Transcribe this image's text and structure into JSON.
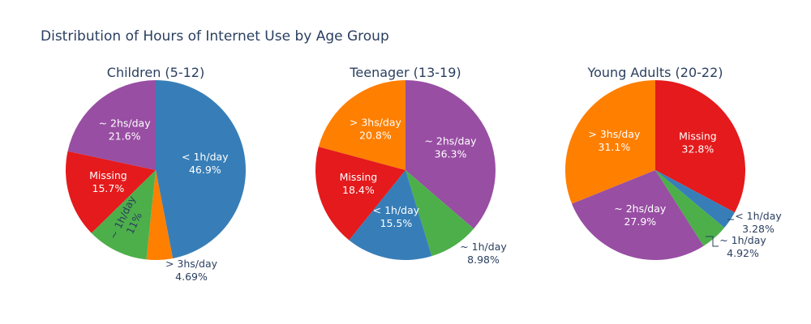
{
  "chart_data": {
    "type": "pie",
    "title": "Distribution of Hours of Internet Use by Age Group",
    "colors": {
      "< 1h/day": "#377eb8",
      "> 3hs/day": "#ff7f00",
      "~ 1h/day": "#4daf4a",
      "Missing": "#e41a1c",
      "~ 2hs/day": "#984ea3"
    },
    "pies": [
      {
        "title": "Children (5-12)",
        "slices": [
          {
            "label": "< 1h/day",
            "value": 46.9,
            "text": "46.9%"
          },
          {
            "label": "> 3hs/day",
            "value": 4.69,
            "text": "4.69%"
          },
          {
            "label": "~ 1h/day",
            "value": 11,
            "text": "11%"
          },
          {
            "label": "Missing",
            "value": 15.7,
            "text": "15.7%"
          },
          {
            "label": "~ 2hs/day",
            "value": 21.6,
            "text": "21.6%"
          }
        ]
      },
      {
        "title": "Teenager (13-19)",
        "slices": [
          {
            "label": "~ 2hs/day",
            "value": 36.3,
            "text": "36.3%"
          },
          {
            "label": "~ 1h/day",
            "value": 8.98,
            "text": "8.98%"
          },
          {
            "label": "< 1h/day",
            "value": 15.5,
            "text": "15.5%"
          },
          {
            "label": "Missing",
            "value": 18.4,
            "text": "18.4%"
          },
          {
            "label": "> 3hs/day",
            "value": 20.8,
            "text": "20.8%"
          }
        ]
      },
      {
        "title": "Young Adults (20-22)",
        "slices": [
          {
            "label": "Missing",
            "value": 32.8,
            "text": "32.8%"
          },
          {
            "label": "< 1h/day",
            "value": 3.28,
            "text": "3.28%"
          },
          {
            "label": "~ 1h/day",
            "value": 4.92,
            "text": "4.92%"
          },
          {
            "label": "~ 2hs/day",
            "value": 27.9,
            "text": "27.9%"
          },
          {
            "label": "> 3hs/day",
            "value": 31.1,
            "text": "31.1%"
          }
        ]
      }
    ]
  }
}
